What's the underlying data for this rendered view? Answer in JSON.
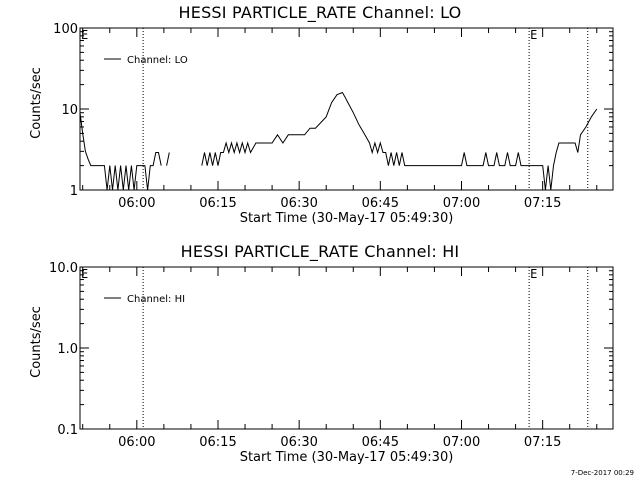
{
  "chart_data": [
    {
      "type": "line",
      "title": "HESSI PARTICLE_RATE Channel: LO",
      "ylabel": "Counts/sec",
      "xlabel": "Start Time (30-May-17 05:49:30)",
      "y_scale": "log",
      "ylim": [
        1,
        100
      ],
      "y_tick_labels": [
        "1",
        "10",
        "100"
      ],
      "xlim": [
        "05:49:30",
        "07:28:00"
      ],
      "x_tick_labels": [
        "06:00",
        "06:15",
        "06:30",
        "06:45",
        "07:00",
        "07:15"
      ],
      "legend": {
        "label": "Channel: LO",
        "position": "top-left"
      },
      "markers": [
        {
          "time": "06:01:10",
          "label": ""
        },
        {
          "time": "07:12:30",
          "label": "E"
        },
        {
          "time": "07:23:20",
          "label": ""
        }
      ],
      "left_edge_label": "E",
      "series": [
        {
          "name": "Channel: LO",
          "segments": [
            [
              [
                "05:49:30",
                9
              ],
              [
                "05:50:00",
                5
              ],
              [
                "05:50:30",
                3
              ],
              [
                "05:51:00",
                2.4
              ],
              [
                "05:51:30",
                2
              ],
              [
                "05:52:00",
                2
              ],
              [
                "05:53:00",
                2
              ],
              [
                "05:54:00",
                2
              ],
              [
                "05:54:30",
                1
              ],
              [
                "05:55:00",
                2
              ],
              [
                "05:55:30",
                1
              ],
              [
                "05:56:00",
                2
              ],
              [
                "05:56:30",
                1
              ],
              [
                "05:57:00",
                2
              ],
              [
                "05:57:30",
                1
              ],
              [
                "05:58:00",
                2
              ],
              [
                "05:58:30",
                1
              ],
              [
                "05:59:00",
                2
              ],
              [
                "05:59:30",
                1
              ],
              [
                "06:00:00",
                2
              ],
              [
                "06:00:30",
                2
              ],
              [
                "06:01:00",
                2
              ],
              [
                "06:01:30",
                2
              ],
              [
                "06:02:00",
                1
              ],
              [
                "06:02:30",
                2
              ],
              [
                "06:03:00",
                2
              ],
              [
                "06:03:30",
                2.9
              ],
              [
                "06:04:00",
                2.9
              ],
              [
                "06:04:30",
                2
              ]
            ],
            [
              [
                "06:05:30",
                2
              ],
              [
                "06:06:00",
                2.9
              ]
            ],
            [
              [
                "06:12:00",
                2
              ],
              [
                "06:12:30",
                2.9
              ],
              [
                "06:13:00",
                2
              ],
              [
                "06:13:30",
                2.9
              ],
              [
                "06:14:00",
                2
              ],
              [
                "06:14:30",
                2.9
              ],
              [
                "06:15:00",
                2
              ],
              [
                "06:15:30",
                2.9
              ],
              [
                "06:16:00",
                2.9
              ],
              [
                "06:16:30",
                3.8
              ],
              [
                "06:17:00",
                2.9
              ],
              [
                "06:17:30",
                3.8
              ],
              [
                "06:18:00",
                2.9
              ],
              [
                "06:18:30",
                3.8
              ],
              [
                "06:19:00",
                2.9
              ],
              [
                "06:19:30",
                3.8
              ],
              [
                "06:20:00",
                2.9
              ],
              [
                "06:20:30",
                3.8
              ],
              [
                "06:21:00",
                2.9
              ],
              [
                "06:22:00",
                3.8
              ],
              [
                "06:23:00",
                3.8
              ],
              [
                "06:24:00",
                3.8
              ],
              [
                "06:25:00",
                3.8
              ],
              [
                "06:26:00",
                4.8
              ],
              [
                "06:27:00",
                3.8
              ],
              [
                "06:28:00",
                4.8
              ],
              [
                "06:29:00",
                4.8
              ],
              [
                "06:30:00",
                4.8
              ],
              [
                "06:31:00",
                4.8
              ],
              [
                "06:32:00",
                5.8
              ],
              [
                "06:33:00",
                5.8
              ],
              [
                "06:34:00",
                6.8
              ],
              [
                "06:35:00",
                8
              ],
              [
                "06:36:00",
                12
              ],
              [
                "06:37:00",
                15
              ],
              [
                "06:38:00",
                16
              ],
              [
                "06:38:30",
                14
              ],
              [
                "06:39:00",
                12
              ],
              [
                "06:40:00",
                9
              ],
              [
                "06:41:00",
                6.5
              ],
              [
                "06:42:00",
                5
              ],
              [
                "06:43:00",
                3.8
              ],
              [
                "06:43:30",
                2.9
              ],
              [
                "06:44:00",
                3.8
              ],
              [
                "06:44:30",
                2.9
              ],
              [
                "06:45:00",
                3.8
              ],
              [
                "06:45:30",
                2.9
              ],
              [
                "06:46:00",
                2.9
              ],
              [
                "06:46:30",
                2
              ],
              [
                "06:47:00",
                2.9
              ],
              [
                "06:47:30",
                2
              ],
              [
                "06:48:00",
                2.9
              ],
              [
                "06:48:30",
                2
              ],
              [
                "06:49:00",
                2.9
              ],
              [
                "06:49:30",
                2
              ],
              [
                "06:50:00",
                2
              ],
              [
                "06:51:00",
                2
              ],
              [
                "06:52:00",
                2
              ],
              [
                "06:53:00",
                2
              ],
              [
                "06:54:00",
                2
              ],
              [
                "06:55:00",
                2
              ],
              [
                "06:56:00",
                2
              ],
              [
                "06:57:00",
                2
              ],
              [
                "06:58:00",
                2
              ],
              [
                "06:59:00",
                2
              ],
              [
                "07:00:00",
                2
              ],
              [
                "07:00:30",
                2.9
              ],
              [
                "07:01:00",
                2
              ],
              [
                "07:02:00",
                2
              ],
              [
                "07:03:00",
                2
              ],
              [
                "07:04:00",
                2
              ],
              [
                "07:04:30",
                2.9
              ],
              [
                "07:05:00",
                2
              ],
              [
                "07:06:00",
                2
              ],
              [
                "07:06:30",
                2.9
              ],
              [
                "07:07:00",
                2
              ],
              [
                "07:08:00",
                2
              ],
              [
                "07:08:30",
                2.9
              ],
              [
                "07:09:00",
                2
              ],
              [
                "07:10:00",
                2
              ],
              [
                "07:10:30",
                2.9
              ],
              [
                "07:11:00",
                2
              ],
              [
                "07:12:00",
                2
              ],
              [
                "07:13:00",
                2
              ],
              [
                "07:14:00",
                2
              ],
              [
                "07:15:00",
                2
              ],
              [
                "07:15:30",
                1
              ],
              [
                "07:16:00",
                2
              ],
              [
                "07:16:30",
                1
              ],
              [
                "07:17:00",
                2
              ],
              [
                "07:17:30",
                2.9
              ],
              [
                "07:18:00",
                3.8
              ],
              [
                "07:19:00",
                3.8
              ],
              [
                "07:20:00",
                3.8
              ],
              [
                "07:21:00",
                3.8
              ],
              [
                "07:21:30",
                2.9
              ],
              [
                "07:22:00",
                4.8
              ],
              [
                "07:23:00",
                6
              ],
              [
                "07:24:00",
                8
              ],
              [
                "07:25:00",
                10
              ]
            ]
          ]
        }
      ]
    },
    {
      "type": "line",
      "title": "HESSI PARTICLE_RATE Channel: HI",
      "ylabel": "Counts/sec",
      "xlabel": "Start Time (30-May-17 05:49:30)",
      "y_scale": "log",
      "ylim": [
        0.1,
        10
      ],
      "y_tick_labels": [
        "0.1",
        "1.0",
        "10.0"
      ],
      "xlim": [
        "05:49:30",
        "07:28:00"
      ],
      "x_tick_labels": [
        "06:00",
        "06:15",
        "06:30",
        "06:45",
        "07:00",
        "07:15"
      ],
      "legend": {
        "label": "Channel: HI",
        "position": "top-left"
      },
      "markers": [
        {
          "time": "06:01:10",
          "label": ""
        },
        {
          "time": "07:12:30",
          "label": "E"
        },
        {
          "time": "07:23:20",
          "label": ""
        }
      ],
      "left_edge_label": "E",
      "series": [
        {
          "name": "Channel: HI",
          "segments": []
        }
      ]
    }
  ],
  "footer": {
    "timestamp": "7-Dec-2017 00:29"
  }
}
